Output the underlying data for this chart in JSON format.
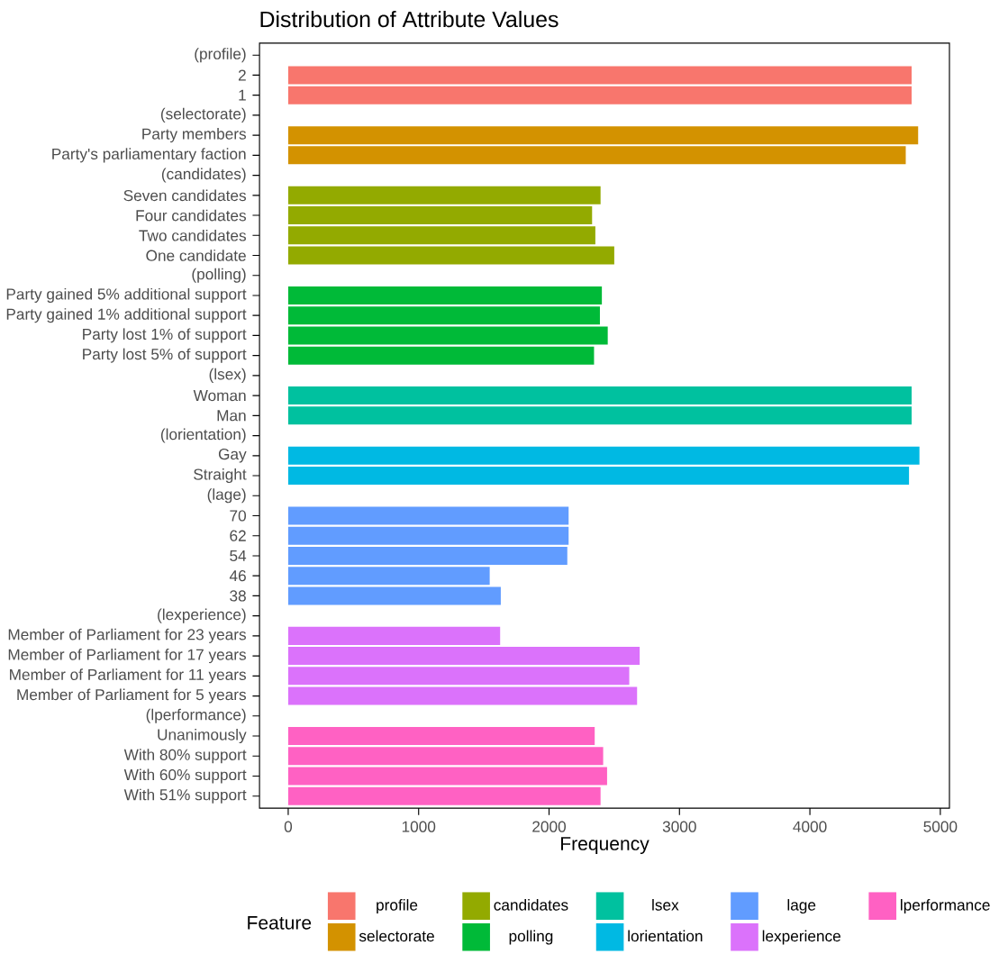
{
  "chart_data": {
    "type": "bar",
    "orientation": "horizontal",
    "title": "Distribution of Attribute Values",
    "xlabel": "Frequency",
    "legend_title": "Feature",
    "legend": "bottom",
    "grid": false,
    "categories": [
      "(profile)",
      "2",
      "1",
      "(selectorate)",
      "Party members",
      "Party's parliamentary faction",
      "(candidates)",
      "Seven candidates",
      "Four candidates",
      "Two candidates",
      "One candidate",
      "(polling)",
      "Party gained 5% additional support",
      "Party gained 1% additional support",
      "Party lost 1% of support",
      "Party lost 5% of support",
      "(lsex)",
      "Woman",
      "Man",
      "(lorientation)",
      "Gay",
      "Straight",
      "(lage)",
      "70",
      "62",
      "54",
      "46",
      "38",
      "(lexperience)",
      "Member of Parliament for 23 years",
      "Member of Parliament for 17 years",
      "Member of Parliament for 11 years",
      "Member of Parliament for 5 years",
      "(lperformance)",
      "Unanimously",
      "With 80% support",
      "With 60% support",
      "With 51% support"
    ],
    "xlim": [
      -220,
      5070
    ],
    "xticks": [
      0,
      1000,
      2000,
      3000,
      4000,
      5000
    ],
    "series": [
      {
        "name": "profile",
        "color": "#f8766d",
        "values": [
          null,
          4780,
          4780,
          null,
          null,
          null,
          null,
          null,
          null,
          null,
          null,
          null,
          null,
          null,
          null,
          null,
          null,
          null,
          null,
          null,
          null,
          null,
          null,
          null,
          null,
          null,
          null,
          null,
          null,
          null,
          null,
          null,
          null,
          null,
          null,
          null,
          null,
          null
        ]
      },
      {
        "name": "selectorate",
        "color": "#d39200",
        "values": [
          null,
          null,
          null,
          null,
          4830,
          4735,
          null,
          null,
          null,
          null,
          null,
          null,
          null,
          null,
          null,
          null,
          null,
          null,
          null,
          null,
          null,
          null,
          null,
          null,
          null,
          null,
          null,
          null,
          null,
          null,
          null,
          null,
          null,
          null,
          null,
          null,
          null,
          null
        ]
      },
      {
        "name": "candidates",
        "color": "#93aa00",
        "values": [
          null,
          null,
          null,
          null,
          null,
          null,
          null,
          2395,
          2330,
          2355,
          2500,
          null,
          null,
          null,
          null,
          null,
          null,
          null,
          null,
          null,
          null,
          null,
          null,
          null,
          null,
          null,
          null,
          null,
          null,
          null,
          null,
          null,
          null,
          null,
          null,
          null,
          null,
          null
        ]
      },
      {
        "name": "polling",
        "color": "#00ba38",
        "values": [
          null,
          null,
          null,
          null,
          null,
          null,
          null,
          null,
          null,
          null,
          null,
          null,
          2405,
          2390,
          2450,
          2345,
          null,
          null,
          null,
          null,
          null,
          null,
          null,
          null,
          null,
          null,
          null,
          null,
          null,
          null,
          null,
          null,
          null,
          null,
          null,
          null,
          null,
          null
        ]
      },
      {
        "name": "lsex",
        "color": "#00c19f",
        "values": [
          null,
          null,
          null,
          null,
          null,
          null,
          null,
          null,
          null,
          null,
          null,
          null,
          null,
          null,
          null,
          null,
          null,
          4780,
          4780,
          null,
          null,
          null,
          null,
          null,
          null,
          null,
          null,
          null,
          null,
          null,
          null,
          null,
          null,
          null,
          null,
          null,
          null,
          null
        ]
      },
      {
        "name": "lorientation",
        "color": "#00b9e3",
        "values": [
          null,
          null,
          null,
          null,
          null,
          null,
          null,
          null,
          null,
          null,
          null,
          null,
          null,
          null,
          null,
          null,
          null,
          null,
          null,
          null,
          4840,
          4760,
          null,
          null,
          null,
          null,
          null,
          null,
          null,
          null,
          null,
          null,
          null,
          null,
          null,
          null,
          null,
          null
        ]
      },
      {
        "name": "lage",
        "color": "#619cff",
        "values": [
          null,
          null,
          null,
          null,
          null,
          null,
          null,
          null,
          null,
          null,
          null,
          null,
          null,
          null,
          null,
          null,
          null,
          null,
          null,
          null,
          null,
          null,
          null,
          2150,
          2150,
          2140,
          1545,
          1630,
          null,
          null,
          null,
          null,
          null,
          null,
          null,
          null,
          null,
          null
        ]
      },
      {
        "name": "lexperience",
        "color": "#db72fb",
        "values": [
          null,
          null,
          null,
          null,
          null,
          null,
          null,
          null,
          null,
          null,
          null,
          null,
          null,
          null,
          null,
          null,
          null,
          null,
          null,
          null,
          null,
          null,
          null,
          null,
          null,
          null,
          null,
          null,
          null,
          1625,
          2695,
          2615,
          2675,
          null,
          null,
          null,
          null,
          null
        ]
      },
      {
        "name": "lperformance",
        "color": "#ff61c3",
        "values": [
          null,
          null,
          null,
          null,
          null,
          null,
          null,
          null,
          null,
          null,
          null,
          null,
          null,
          null,
          null,
          null,
          null,
          null,
          null,
          null,
          null,
          null,
          null,
          null,
          null,
          null,
          null,
          null,
          null,
          null,
          null,
          null,
          null,
          null,
          2350,
          2415,
          2445,
          2395
        ]
      }
    ]
  }
}
